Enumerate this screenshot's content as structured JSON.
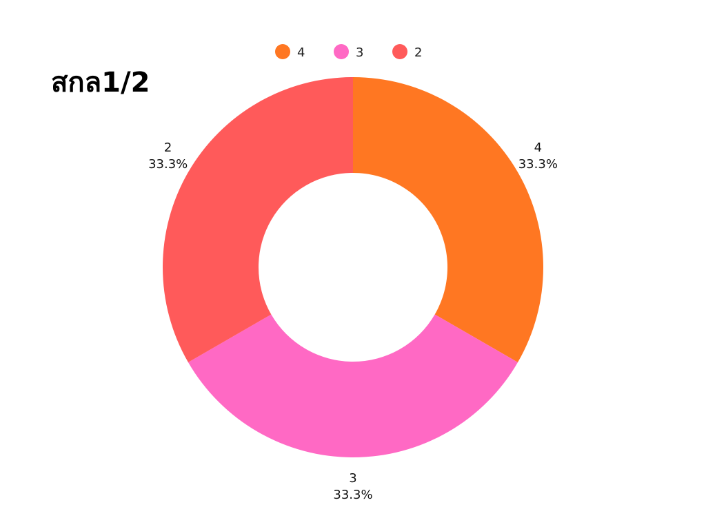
{
  "chart_data": {
    "type": "pie",
    "donut": true,
    "title": "สกล1/2",
    "legend_position": "top",
    "slices": [
      {
        "label": "4",
        "value": 1,
        "percent_label": "33.3%",
        "color": "#ff7722"
      },
      {
        "label": "3",
        "value": 1,
        "percent_label": "33.3%",
        "color": "#ff69c4"
      },
      {
        "label": "2",
        "value": 1,
        "percent_label": "33.3%",
        "color": "#ff5a5a"
      }
    ]
  }
}
